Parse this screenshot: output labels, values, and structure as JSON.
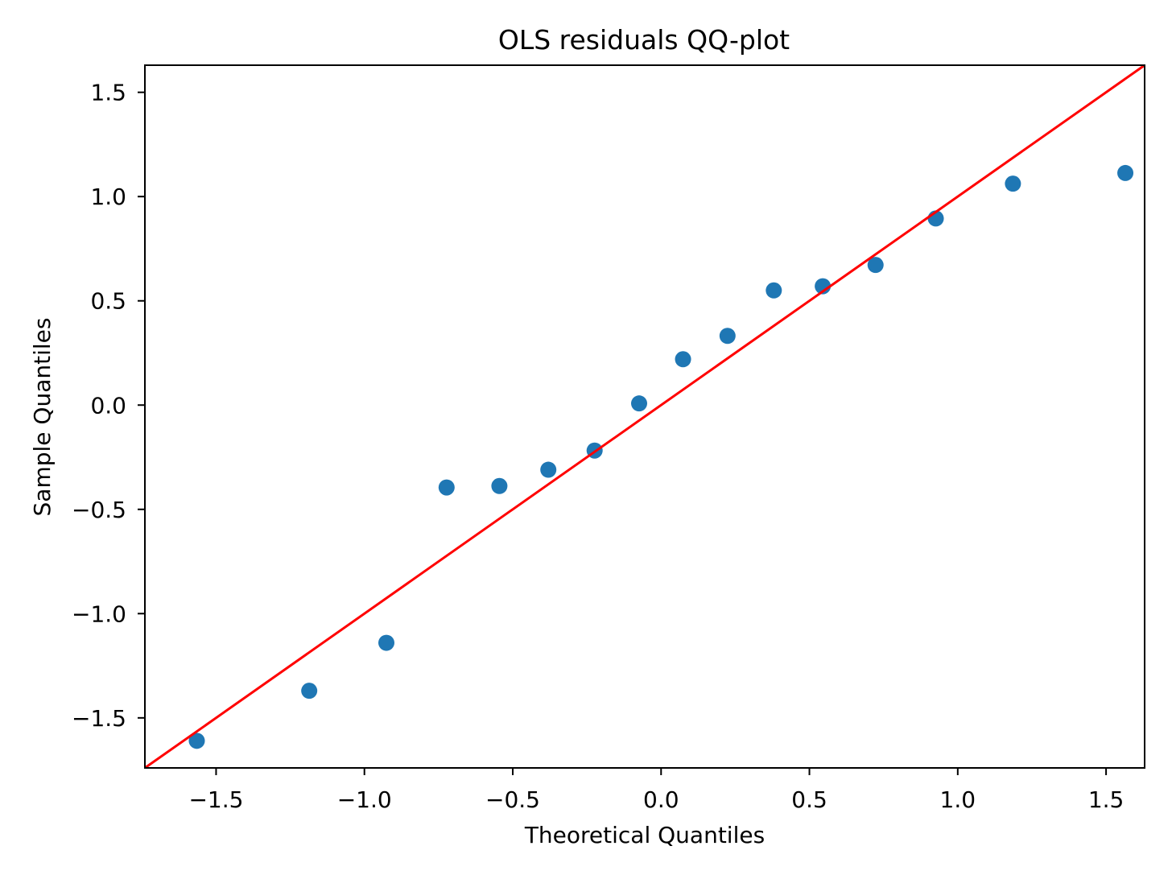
{
  "chart_data": {
    "type": "scatter",
    "title": "OLS residuals QQ-plot",
    "xlabel": "Theoretical Quantiles",
    "ylabel": "Sample Quantiles",
    "xlim": [
      -1.74,
      1.63
    ],
    "ylim": [
      -1.74,
      1.63
    ],
    "x_ticks": [
      -1.5,
      -1.0,
      -0.5,
      0.0,
      0.5,
      1.0,
      1.5
    ],
    "x_tick_labels": [
      "−1.5",
      "−1.0",
      "−0.5",
      "0.0",
      "0.5",
      "1.0",
      "1.5"
    ],
    "y_ticks": [
      -1.5,
      -1.0,
      -0.5,
      0.0,
      0.5,
      1.0,
      1.5
    ],
    "y_tick_labels": [
      "−1.5",
      "−1.0",
      "−0.5",
      "0.0",
      "0.5",
      "1.0",
      "1.5"
    ],
    "grid": false,
    "marker_color": "#1f77b4",
    "line_color": "#ff0000",
    "points": {
      "x": [
        -1.565,
        -1.186,
        -0.926,
        -0.723,
        -0.545,
        -0.38,
        -0.224,
        -0.074,
        0.074,
        0.224,
        0.38,
        0.545,
        0.723,
        0.926,
        1.186,
        1.565
      ],
      "y": [
        -1.61,
        -1.37,
        -1.14,
        -0.395,
        -0.388,
        -0.31,
        -0.218,
        0.008,
        0.22,
        0.332,
        0.55,
        0.57,
        0.672,
        0.895,
        1.062,
        1.113
      ]
    },
    "reference_line": {
      "x": [
        -1.74,
        1.63
      ],
      "y": [
        -1.74,
        1.63
      ]
    }
  }
}
